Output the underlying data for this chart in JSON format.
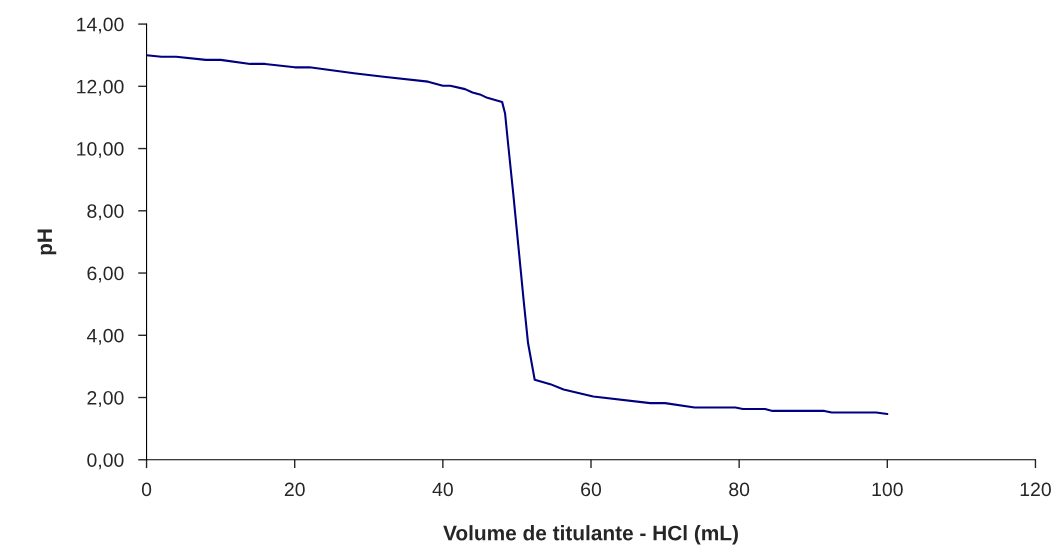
{
  "chart_data": {
    "type": "line",
    "xlabel": "Volume de titulante - HCl (mL)",
    "ylabel": "pH",
    "x": [
      0,
      2,
      4,
      8,
      10,
      14,
      16,
      20,
      22,
      28,
      32,
      38,
      40,
      41,
      43,
      44,
      45,
      46,
      48,
      48.4,
      48.8,
      49.5,
      50.2,
      50.9,
      51.5,
      52.4,
      54.5,
      56.3,
      60.3,
      68,
      70,
      74,
      79.5,
      80.5,
      83.5,
      84.5,
      91.5,
      92.5,
      98.5,
      100
    ],
    "series": [
      {
        "color": "#000080",
        "values": [
          13.0,
          12.95,
          12.95,
          12.85,
          12.85,
          12.72,
          12.72,
          12.61,
          12.61,
          12.42,
          12.31,
          12.15,
          12.02,
          12.02,
          11.91,
          11.8,
          11.74,
          11.63,
          11.5,
          11.13,
          10.17,
          8.56,
          6.85,
          5.14,
          3.75,
          2.57,
          2.43,
          2.26,
          2.03,
          1.82,
          1.82,
          1.68,
          1.68,
          1.63,
          1.63,
          1.57,
          1.57,
          1.52,
          1.52,
          1.47
        ]
      }
    ],
    "xlim": [
      0,
      120
    ],
    "xticks": [
      0,
      20,
      40,
      60,
      80,
      100,
      120
    ],
    "ylim": [
      0,
      14
    ],
    "yticks": [
      {
        "value": 0,
        "label": "0,00"
      },
      {
        "value": 2,
        "label": "2,00"
      },
      {
        "value": 4,
        "label": "4,00"
      },
      {
        "value": 6,
        "label": "6,00"
      },
      {
        "value": 8,
        "label": "8,00"
      },
      {
        "value": 10,
        "label": "10,00"
      },
      {
        "value": 12,
        "label": "12,00"
      },
      {
        "value": 14,
        "label": "14,00"
      }
    ],
    "grid": false,
    "marker": "none",
    "line_style": "solid"
  }
}
